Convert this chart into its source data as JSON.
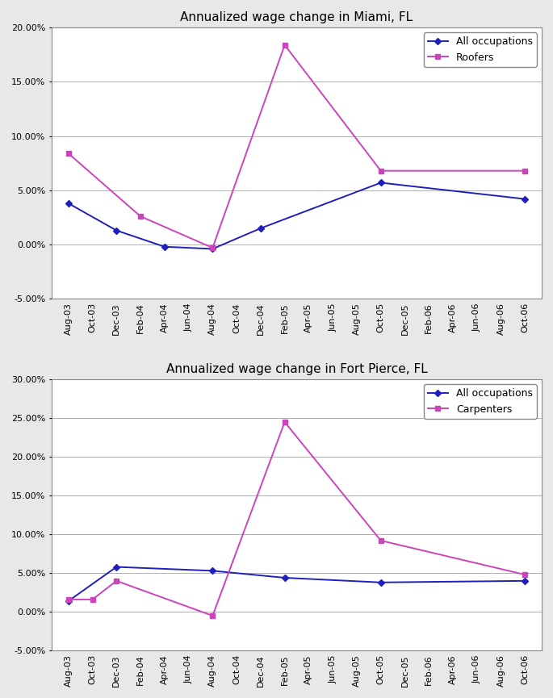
{
  "miami": {
    "title": "Annualized wage change in Miami, FL",
    "x_labels": [
      "Aug-03",
      "Oct-03",
      "Dec-03",
      "Feb-04",
      "Apr-04",
      "Jun-04",
      "Aug-04",
      "Oct-04",
      "Dec-04",
      "Feb-05",
      "Apr-05",
      "Jun-05",
      "Aug-05",
      "Oct-05",
      "Dec-05",
      "Feb-06",
      "Apr-06",
      "Jun-06",
      "Aug-06",
      "Oct-06"
    ],
    "all_occ_x": [
      0,
      2,
      4,
      6,
      8,
      13,
      19
    ],
    "all_occ_y": [
      0.038,
      0.013,
      -0.002,
      -0.004,
      0.015,
      0.057,
      0.042
    ],
    "roofers_x": [
      0,
      3,
      6,
      9,
      13,
      19
    ],
    "roofers_y": [
      0.084,
      0.026,
      -0.003,
      0.184,
      0.068,
      0.068
    ],
    "ylim": [
      -0.05,
      0.2
    ],
    "yticks": [
      -0.05,
      0.0,
      0.05,
      0.1,
      0.15,
      0.2
    ],
    "legend_labels": [
      "All occupations",
      "Roofers"
    ]
  },
  "fortpierce": {
    "title": "Annualized wage change in Fort Pierce, FL",
    "x_labels": [
      "Aug-03",
      "Oct-03",
      "Dec-03",
      "Feb-04",
      "Apr-04",
      "Jun-04",
      "Aug-04",
      "Oct-04",
      "Dec-04",
      "Feb-05",
      "Apr-05",
      "Jun-05",
      "Aug-05",
      "Oct-05",
      "Dec-05",
      "Feb-06",
      "Apr-06",
      "Jun-06",
      "Aug-06",
      "Oct-06"
    ],
    "all_occ_x": [
      0,
      2,
      6,
      9,
      13,
      19
    ],
    "all_occ_y": [
      0.014,
      0.058,
      0.053,
      0.044,
      0.038,
      0.04
    ],
    "carpenters_x": [
      0,
      1,
      2,
      6,
      9,
      13,
      19
    ],
    "carpenters_y": [
      0.016,
      0.016,
      0.04,
      -0.005,
      0.245,
      0.092,
      0.048
    ],
    "ylim": [
      -0.05,
      0.3
    ],
    "yticks": [
      -0.05,
      0.0,
      0.05,
      0.1,
      0.15,
      0.2,
      0.25,
      0.3
    ],
    "legend_labels": [
      "All occupations",
      "Carpenters"
    ]
  },
  "all_occ_color": "#1F1FBB",
  "special_color": "#CC44BB",
  "marker_all": "D",
  "marker_special": "s",
  "line_width": 1.4,
  "marker_size": 4,
  "bg_color": "#e8e8e8",
  "plot_bg_color": "#ffffff",
  "font_size_title": 11,
  "font_size_ticks": 8,
  "font_size_legend": 9,
  "grid_color": "#b0b0b0",
  "spine_color": "#888888"
}
